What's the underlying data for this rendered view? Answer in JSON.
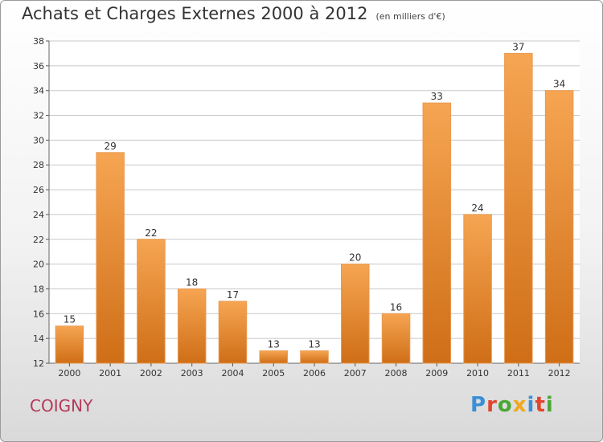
{
  "header": {
    "title": "Achats et Charges Externes 2000 à 2012",
    "unit": "(en milliers d'€)"
  },
  "footer": {
    "commune": "COIGNY",
    "logo_text": "Proxiti"
  },
  "colors": {
    "bar_top": "#f6a552",
    "bar_bottom": "#cf6e17",
    "grid": "#c8c8c8",
    "commune": "#b5385a",
    "logo_letters": [
      "#3a8fd6",
      "#e1452e",
      "#49a834",
      "#f0a81b",
      "#3a8fd6",
      "#e1452e",
      "#49a834"
    ]
  },
  "chart_data": {
    "type": "bar",
    "title": "Achats et Charges Externes 2000 à 2012",
    "subtitle": "(en milliers d'€)",
    "categories": [
      "2000",
      "2001",
      "2002",
      "2003",
      "2004",
      "2005",
      "2006",
      "2007",
      "2008",
      "2009",
      "2010",
      "2011",
      "2012"
    ],
    "values": [
      15,
      29,
      22,
      18,
      17,
      13,
      13,
      20,
      16,
      33,
      24,
      37,
      34
    ],
    "ylim": [
      12,
      38
    ],
    "yticks": [
      12,
      14,
      16,
      18,
      20,
      22,
      24,
      26,
      28,
      30,
      32,
      34,
      36,
      38
    ],
    "grid": true,
    "xlabel": "",
    "ylabel": ""
  }
}
